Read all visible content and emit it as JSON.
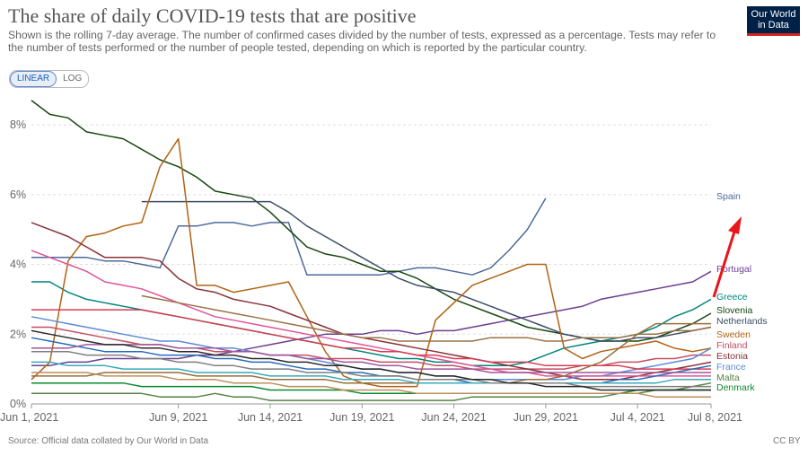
{
  "header": {
    "title": "The share of daily COVID-19 tests that are positive",
    "subtitle": "Shown is the rolling 7-day average. The number of confirmed cases divided by the number of tests, expressed as a percentage. Tests may refer to the number of tests performed or the number of people tested, depending on which is reported by the particular country.",
    "logo_line1": "Our World",
    "logo_line2": "in Data"
  },
  "controls": {
    "linear": "LINEAR",
    "log": "LOG"
  },
  "footer": {
    "source": "Source: Official data collated by Our World in Data",
    "license": "CC BY"
  },
  "chart_data": {
    "type": "line",
    "x_labels": [
      "Jun 1, 2021",
      "Jun 9, 2021",
      "Jun 14, 2021",
      "Jun 19, 2021",
      "Jun 24, 2021",
      "Jun 29, 2021",
      "Jul 4, 2021",
      "Jul 8, 2021"
    ],
    "x_label_days": [
      0,
      8,
      13,
      18,
      23,
      28,
      33,
      37
    ],
    "y_ticks": [
      "0%",
      "2%",
      "4%",
      "6%",
      "8%"
    ],
    "ylim": [
      0,
      8.8
    ],
    "xlim": [
      0,
      37
    ],
    "arrow_color": "#e8161b",
    "series": [
      {
        "name": "Spain",
        "color": "#4c6a9c",
        "values": [
          4.2,
          4.2,
          4.2,
          4.2,
          4.1,
          4.1,
          4.0,
          3.9,
          5.1,
          5.1,
          5.2,
          5.2,
          5.1,
          5.2,
          5.2,
          3.7,
          3.7,
          3.7,
          3.7,
          3.7,
          3.8,
          3.9,
          3.9,
          3.8,
          3.7,
          3.9,
          4.4,
          5.0,
          5.9,
          null,
          null,
          null,
          null,
          null,
          null,
          null,
          null,
          null
        ]
      },
      {
        "name": "Portugal",
        "color": "#6d3e91",
        "values": [
          1.1,
          1.1,
          1.2,
          1.2,
          1.3,
          1.3,
          1.3,
          1.3,
          1.3,
          1.4,
          1.4,
          1.5,
          1.6,
          1.7,
          1.8,
          1.9,
          2.0,
          2.0,
          2.0,
          2.1,
          2.1,
          2.0,
          2.1,
          2.1,
          2.2,
          2.3,
          2.4,
          2.5,
          2.6,
          2.7,
          2.8,
          3.0,
          3.1,
          3.2,
          3.3,
          3.4,
          3.5,
          3.8
        ]
      },
      {
        "name": "Greece",
        "color": "#00847e",
        "values": [
          3.5,
          3.5,
          3.2,
          3.0,
          2.9,
          2.8,
          2.7,
          2.6,
          2.5,
          2.4,
          2.3,
          2.2,
          2.1,
          2.0,
          1.9,
          1.8,
          1.7,
          1.6,
          1.5,
          1.4,
          1.3,
          1.3,
          1.2,
          1.2,
          1.1,
          1.1,
          1.1,
          1.2,
          1.4,
          1.6,
          1.7,
          1.8,
          1.9,
          2.0,
          2.2,
          2.5,
          2.7,
          3.0
        ]
      },
      {
        "name": "Slovenia",
        "color": "#18470f",
        "values": [
          8.7,
          8.3,
          8.2,
          7.8,
          7.7,
          7.6,
          7.3,
          7.0,
          6.8,
          6.5,
          6.1,
          6.0,
          5.9,
          5.5,
          5.0,
          4.5,
          4.3,
          4.2,
          4.0,
          3.8,
          3.8,
          3.6,
          3.3,
          3.0,
          2.8,
          2.6,
          2.4,
          2.2,
          2.1,
          2.0,
          1.9,
          1.8,
          1.8,
          1.8,
          1.9,
          2.1,
          2.3,
          2.6
        ]
      },
      {
        "name": "Netherlands",
        "color": "#3c4e66",
        "values": [
          null,
          null,
          null,
          null,
          null,
          null,
          5.8,
          5.8,
          5.8,
          5.8,
          5.8,
          5.8,
          5.8,
          5.8,
          5.5,
          5.1,
          4.8,
          4.5,
          4.2,
          3.9,
          3.6,
          3.4,
          3.3,
          3.2,
          3.0,
          2.8,
          2.6,
          2.4,
          2.2,
          2.0,
          1.9,
          1.8,
          1.8,
          1.9,
          1.9,
          2.0,
          2.1,
          2.2
        ]
      },
      {
        "name": "Sweden",
        "color": "#b16214",
        "values": [
          0.7,
          1.2,
          4.1,
          4.8,
          4.9,
          5.1,
          5.2,
          6.8,
          7.6,
          3.4,
          3.4,
          3.2,
          3.3,
          3.4,
          3.5,
          2.5,
          1.5,
          0.8,
          0.6,
          0.5,
          0.5,
          0.5,
          2.4,
          2.9,
          3.4,
          3.6,
          3.8,
          4.0,
          4.0,
          1.6,
          1.3,
          1.5,
          1.6,
          1.7,
          1.8,
          1.6,
          1.5,
          1.6
        ]
      },
      {
        "name": "Finland",
        "color": "#c15065",
        "values": [
          2.2,
          2.2,
          2.1,
          2.0,
          1.9,
          1.8,
          1.7,
          1.7,
          1.6,
          1.6,
          1.5,
          1.5,
          1.5,
          1.4,
          1.4,
          1.4,
          1.3,
          1.3,
          1.3,
          1.2,
          1.2,
          1.2,
          1.1,
          1.1,
          1.0,
          1.0,
          1.0,
          1.0,
          1.0,
          1.0,
          1.1,
          1.1,
          1.2,
          1.2,
          1.3,
          1.3,
          1.4,
          1.4
        ]
      },
      {
        "name": "Estonia",
        "color": "#883039",
        "values": [
          5.2,
          5.0,
          4.8,
          4.5,
          4.2,
          4.2,
          4.2,
          4.1,
          3.6,
          3.3,
          3.2,
          3.0,
          2.9,
          2.8,
          2.6,
          2.4,
          2.2,
          2.0,
          1.9,
          1.8,
          1.7,
          1.6,
          1.5,
          1.4,
          1.3,
          1.2,
          1.1,
          1.0,
          0.9,
          0.8,
          0.7,
          0.7,
          0.7,
          0.8,
          0.9,
          1.0,
          1.1,
          1.2
        ]
      },
      {
        "name": "France",
        "color": "#5b8bd5",
        "values": [
          2.5,
          2.4,
          2.3,
          2.2,
          2.1,
          2.0,
          1.9,
          1.8,
          1.8,
          1.7,
          1.6,
          1.6,
          1.5,
          1.4,
          1.4,
          1.3,
          1.2,
          1.1,
          1.0,
          1.0,
          0.9,
          0.9,
          0.8,
          0.8,
          0.7,
          0.7,
          0.7,
          0.7,
          0.7,
          0.7,
          0.8,
          0.8,
          0.9,
          1.0,
          1.1,
          1.2,
          1.3,
          1.6
        ]
      },
      {
        "name": "Malta",
        "color": "#578145",
        "values": [
          0.3,
          0.3,
          0.3,
          0.3,
          0.3,
          0.3,
          0.3,
          0.2,
          0.2,
          0.2,
          0.3,
          0.2,
          0.2,
          0.1,
          0.1,
          0.1,
          0.1,
          0.1,
          0.1,
          0.1,
          0.1,
          0.1,
          0.1,
          0.1,
          0.2,
          0.2,
          0.2,
          0.2,
          0.2,
          0.2,
          0.2,
          0.2,
          0.3,
          0.3,
          0.4,
          0.4,
          0.5,
          0.6
        ]
      },
      {
        "name": "Denmark",
        "color": "#0a8a2f",
        "values": [
          0.6,
          0.6,
          0.6,
          0.6,
          0.6,
          0.6,
          0.5,
          0.5,
          0.5,
          0.5,
          0.5,
          0.5,
          0.5,
          0.4,
          0.4,
          0.4,
          0.4,
          0.4,
          0.3,
          0.3,
          0.3,
          0.3,
          0.3,
          0.3,
          0.3,
          0.3,
          0.3,
          0.3,
          0.3,
          0.3,
          0.3,
          0.3,
          0.3,
          0.4,
          0.4,
          0.4,
          0.4,
          0.4
        ]
      },
      {
        "name": "",
        "color": "#e0559a",
        "values": [
          4.4,
          4.2,
          4.0,
          3.8,
          3.5,
          3.4,
          3.3,
          3.1,
          2.9,
          2.7,
          2.5,
          2.4,
          2.3,
          2.2,
          2.1,
          2.0,
          1.9,
          1.8,
          1.7,
          1.6,
          1.5,
          1.4,
          1.3,
          1.2,
          1.1,
          1.0,
          0.9,
          0.9,
          0.8,
          0.8,
          0.8,
          0.8,
          0.8,
          0.8,
          0.8,
          0.8,
          0.8,
          0.8
        ]
      },
      {
        "name": "",
        "color": "#d73c50",
        "values": [
          2.7,
          2.7,
          2.7,
          2.7,
          2.7,
          2.7,
          2.7,
          2.6,
          2.5,
          2.4,
          2.3,
          2.2,
          2.1,
          2.0,
          1.9,
          1.8,
          1.7,
          1.6,
          1.6,
          1.5,
          1.5,
          1.4,
          1.4,
          1.3,
          1.3,
          1.2,
          1.2,
          1.2,
          1.1,
          1.1,
          1.1,
          1.1,
          1.1,
          1.0,
          1.0,
          1.0,
          1.0,
          1.0
        ]
      },
      {
        "name": "",
        "color": "#9a7146",
        "values": [
          null,
          null,
          null,
          null,
          null,
          null,
          3.1,
          3.0,
          2.9,
          2.8,
          2.7,
          2.6,
          2.5,
          2.4,
          2.3,
          2.2,
          2.1,
          2.0,
          1.9,
          1.9,
          1.8,
          1.8,
          1.8,
          1.8,
          1.8,
          1.9,
          1.9,
          1.9,
          1.8,
          1.8,
          1.9,
          1.9,
          1.9,
          2.0,
          2.0,
          2.1,
          2.1,
          2.2
        ]
      },
      {
        "name": "",
        "color": "#286bbb",
        "values": [
          1.9,
          1.8,
          1.7,
          1.6,
          1.5,
          1.5,
          1.5,
          1.4,
          1.4,
          1.4,
          1.3,
          1.3,
          1.2,
          1.2,
          1.1,
          1.0,
          1.0,
          0.9,
          0.9,
          0.8,
          0.8,
          0.7,
          0.7,
          0.7,
          0.6,
          0.6,
          0.6,
          0.6,
          0.6,
          0.6,
          0.6,
          0.6,
          0.7,
          0.7,
          0.8,
          0.9,
          1.0,
          1.1
        ]
      },
      {
        "name": "",
        "color": "#996d39",
        "values": [
          0.8,
          0.8,
          0.8,
          0.8,
          0.9,
          0.9,
          0.9,
          0.9,
          0.9,
          0.8,
          0.8,
          0.8,
          0.8,
          0.7,
          0.7,
          0.7,
          0.7,
          0.6,
          0.6,
          0.6,
          0.6,
          0.6,
          0.6,
          0.6,
          0.6,
          0.6,
          0.6,
          0.7,
          0.7,
          0.8,
          1.0,
          1.2,
          1.6,
          2.0,
          2.3,
          2.3,
          2.3,
          2.3
        ]
      },
      {
        "name": "",
        "color": "#38aaba",
        "values": [
          1.2,
          1.2,
          1.1,
          1.1,
          1.1,
          1.0,
          1.0,
          1.0,
          1.0,
          0.9,
          0.9,
          0.9,
          0.9,
          0.8,
          0.8,
          0.8,
          0.8,
          0.7,
          0.7,
          0.7,
          0.7,
          0.6,
          0.6,
          0.6,
          0.6,
          0.6,
          0.6,
          0.6,
          0.6,
          0.6,
          0.6,
          0.6,
          0.6,
          0.6,
          0.6,
          0.7,
          0.7,
          0.7
        ]
      },
      {
        "name": "",
        "color": "#7f7f7f",
        "values": [
          1.5,
          1.5,
          1.5,
          1.4,
          1.4,
          1.4,
          1.3,
          1.3,
          1.2,
          1.2,
          1.1,
          1.1,
          1.0,
          1.0,
          1.0,
          0.9,
          0.9,
          0.9,
          0.8,
          0.8,
          0.8,
          0.7,
          0.7,
          0.7,
          0.7,
          0.6,
          0.6,
          0.6,
          0.6,
          0.6,
          0.5,
          0.5,
          0.5,
          0.5,
          0.5,
          0.5,
          0.5,
          0.5
        ]
      },
      {
        "name": "",
        "color": "#a2559c",
        "values": [
          1.6,
          1.6,
          1.6,
          1.7,
          1.7,
          1.7,
          1.7,
          1.7,
          1.6,
          1.6,
          1.6,
          1.5,
          1.5,
          1.4,
          1.4,
          1.3,
          1.3,
          1.2,
          1.2,
          1.1,
          1.1,
          1.0,
          1.0,
          1.0,
          1.0,
          0.9,
          0.9,
          0.9,
          0.9,
          0.9,
          0.9,
          0.9,
          0.9,
          0.9,
          0.9,
          0.9,
          0.9,
          0.9
        ]
      },
      {
        "name": "",
        "color": "#2a2a2a",
        "values": [
          2.1,
          2.0,
          1.9,
          1.8,
          1.7,
          1.7,
          1.6,
          1.6,
          1.5,
          1.5,
          1.4,
          1.4,
          1.3,
          1.3,
          1.2,
          1.2,
          1.1,
          1.1,
          1.0,
          1.0,
          0.9,
          0.9,
          0.8,
          0.8,
          0.7,
          0.7,
          0.6,
          0.6,
          0.5,
          0.5,
          0.5,
          0.4,
          0.4,
          0.4,
          0.4,
          0.4,
          0.4,
          0.4
        ]
      },
      {
        "name": "",
        "color": "#bc8e5a",
        "values": [
          0.9,
          0.9,
          0.9,
          0.9,
          0.8,
          0.8,
          0.8,
          0.8,
          0.7,
          0.7,
          0.7,
          0.6,
          0.6,
          0.6,
          0.5,
          0.5,
          0.5,
          0.4,
          0.4,
          0.4,
          0.4,
          0.3,
          0.3,
          0.3,
          0.3,
          0.3,
          0.3,
          0.3,
          0.3,
          0.3,
          0.3,
          0.3,
          0.3,
          0.3,
          0.2,
          0.2,
          0.2,
          0.2
        ]
      }
    ]
  }
}
